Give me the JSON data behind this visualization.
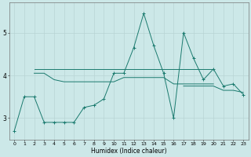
{
  "xlabel": "Humidex (Indice chaleur)",
  "x_values": [
    0,
    1,
    2,
    3,
    4,
    5,
    6,
    7,
    8,
    9,
    10,
    11,
    12,
    13,
    14,
    15,
    16,
    17,
    18,
    19,
    20,
    21,
    22,
    23
  ],
  "series": [
    {
      "y": [
        2.7,
        3.5,
        3.5,
        2.9,
        2.9,
        2.9,
        2.9,
        3.25,
        3.3,
        3.45,
        4.05,
        4.05,
        4.65,
        5.45,
        4.7,
        4.05,
        3.0,
        5.0,
        4.4,
        3.9,
        4.15,
        3.75,
        3.8,
        3.55
      ],
      "marker": true
    },
    {
      "y": [
        null,
        null,
        4.15,
        4.15,
        4.15,
        4.15,
        4.15,
        4.15,
        4.15,
        4.15,
        4.15,
        4.15,
        4.15,
        4.15,
        4.15,
        4.15,
        4.15,
        4.15,
        4.15,
        4.15,
        4.15,
        null,
        null,
        null
      ],
      "marker": false
    },
    {
      "y": [
        null,
        null,
        4.05,
        4.05,
        3.9,
        3.85,
        3.85,
        3.85,
        3.85,
        3.85,
        3.85,
        3.95,
        3.95,
        3.95,
        3.95,
        3.95,
        3.8,
        3.8,
        3.8,
        3.8,
        3.8,
        null,
        null,
        null
      ],
      "marker": false
    },
    {
      "y": [
        null,
        null,
        null,
        null,
        null,
        null,
        null,
        null,
        null,
        null,
        null,
        null,
        null,
        null,
        null,
        null,
        null,
        3.75,
        3.75,
        3.75,
        3.75,
        3.65,
        3.65,
        3.6
      ],
      "marker": false
    }
  ],
  "line_color": "#1a7a6e",
  "bg_color": "#cce8e8",
  "grid_color": "#b8d4d4",
  "ylim": [
    2.5,
    5.7
  ],
  "yticks": [
    3,
    4,
    5
  ],
  "xlim": [
    -0.5,
    23.5
  ],
  "figsize": [
    3.2,
    2.0
  ],
  "dpi": 100
}
